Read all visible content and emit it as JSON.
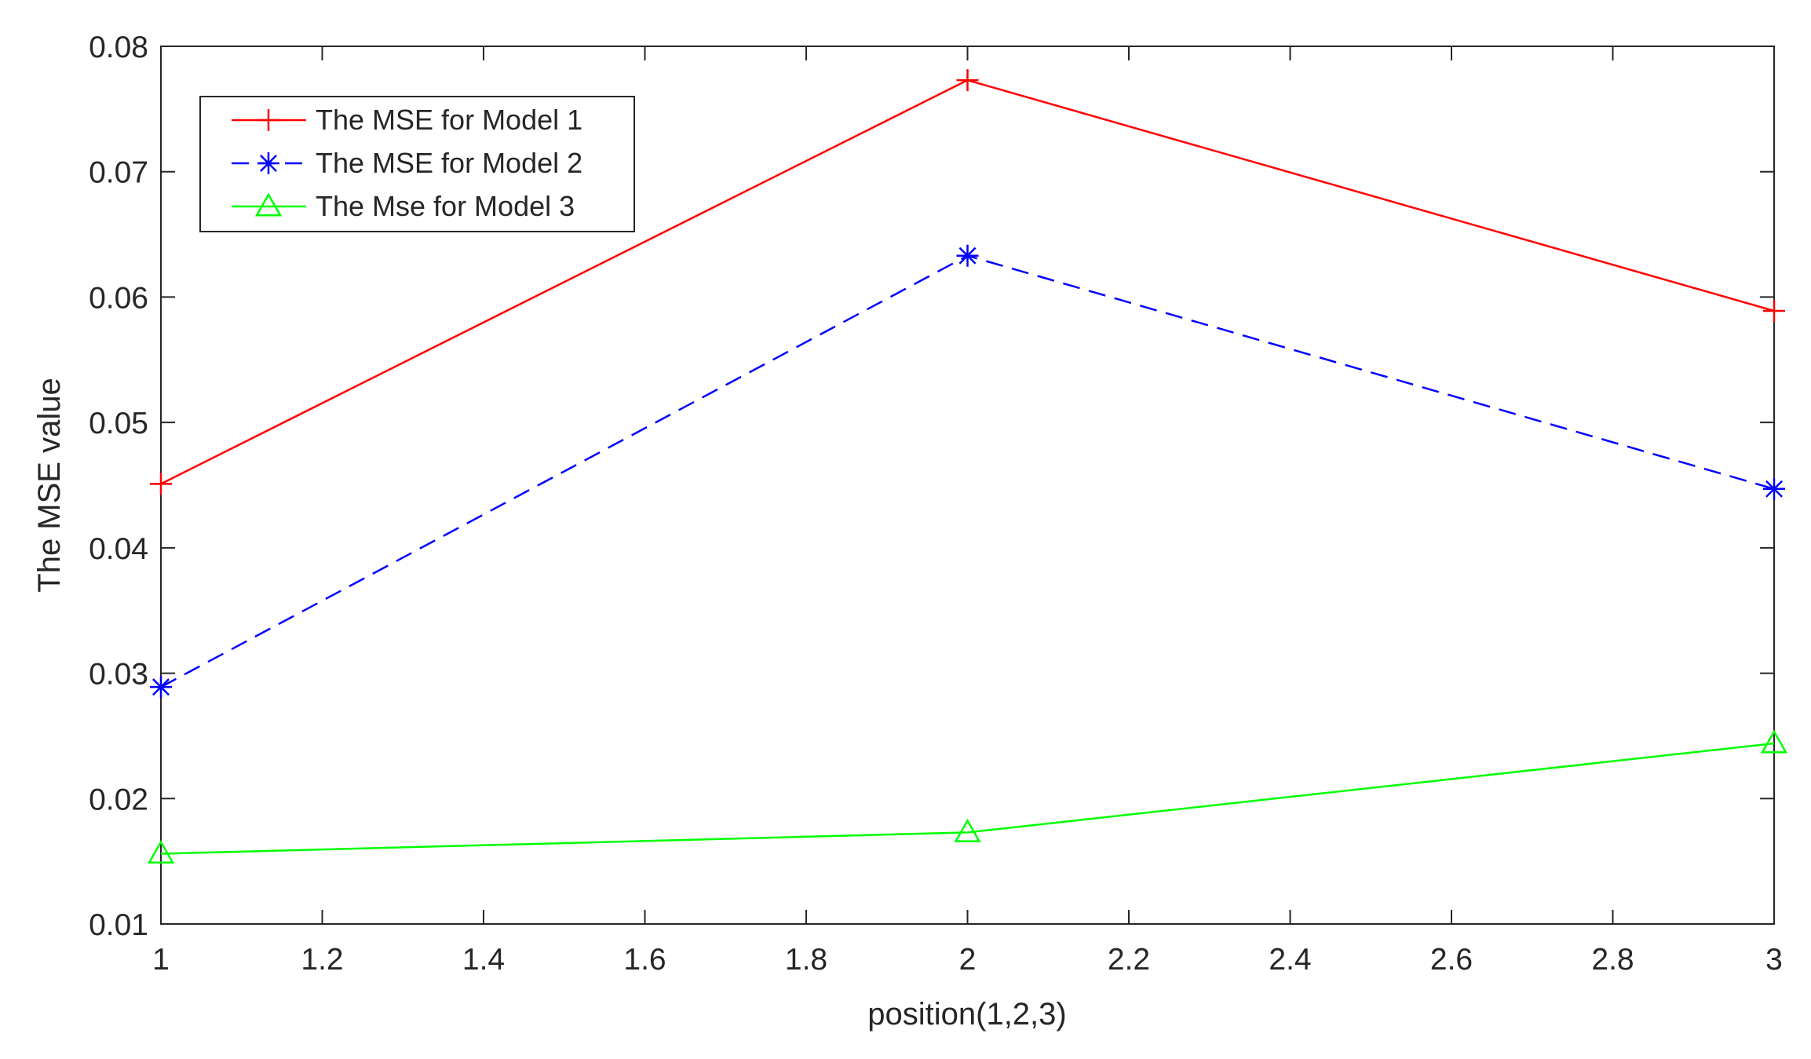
{
  "chart_data": {
    "type": "line",
    "title": "",
    "xlabel": "position(1,2,3)",
    "ylabel": "The MSE value",
    "xlim": [
      1,
      3
    ],
    "ylim": [
      0.01,
      0.08
    ],
    "x": [
      1,
      2,
      3
    ],
    "xticks": [
      1,
      1.2,
      1.4,
      1.6,
      1.8,
      2,
      2.2,
      2.4,
      2.6,
      2.8,
      3
    ],
    "xtick_labels": [
      "1",
      "1.2",
      "1.4",
      "1.6",
      "1.8",
      "2",
      "2.2",
      "2.4",
      "2.6",
      "2.8",
      "3"
    ],
    "yticks": [
      0.01,
      0.02,
      0.03,
      0.04,
      0.05,
      0.06,
      0.07,
      0.08
    ],
    "ytick_labels": [
      "0.01",
      "0.02",
      "0.03",
      "0.04",
      "0.05",
      "0.06",
      "0.07",
      "0.08"
    ],
    "grid": false,
    "legend_position": "top-left",
    "series": [
      {
        "name": "The MSE for Model 1",
        "values": [
          0.0451,
          0.0773,
          0.0589
        ],
        "color": "#ff0000",
        "line_style": "solid",
        "marker": "plus"
      },
      {
        "name": "The MSE for Model 2",
        "values": [
          0.0289,
          0.0633,
          0.0447
        ],
        "color": "#0000ff",
        "line_style": "dashed",
        "marker": "asterisk"
      },
      {
        "name": "The Mse for Model 3",
        "values": [
          0.0156,
          0.0173,
          0.0244
        ],
        "color": "#00ff00",
        "line_style": "solid",
        "marker": "triangle"
      }
    ]
  }
}
